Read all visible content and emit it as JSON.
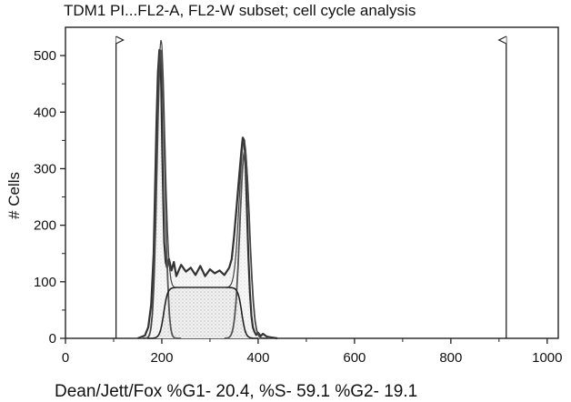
{
  "chart_data": {
    "type": "line",
    "title": "TDM1 PI...FL2-A, FL2-W subset; cell cycle analysis",
    "xlabel": "Dean/Jett/Fox %G1- 20.4, %S- 59.1 %G2- 19.1",
    "ylabel": "# Cells",
    "xlim": [
      0,
      1023
    ],
    "ylim": [
      0,
      550
    ],
    "x_ticks": [
      0,
      200,
      400,
      600,
      800,
      1000
    ],
    "y_ticks": [
      0,
      100,
      200,
      300,
      400,
      500
    ],
    "grid": false,
    "gate_markers": [
      105,
      915
    ],
    "histogram": {
      "x": [
        150,
        165,
        172,
        178,
        183,
        186,
        189,
        192,
        195,
        197,
        199,
        201,
        203,
        205,
        208,
        211,
        215,
        220,
        225,
        230,
        240,
        250,
        260,
        270,
        280,
        290,
        300,
        310,
        320,
        330,
        340,
        345,
        350,
        355,
        360,
        365,
        368,
        371,
        374,
        377,
        380,
        383,
        386,
        389,
        392,
        396,
        400,
        405,
        410,
        418,
        425,
        440
      ],
      "y": [
        0,
        5,
        20,
        60,
        150,
        260,
        380,
        470,
        510,
        505,
        440,
        330,
        240,
        170,
        135,
        125,
        140,
        120,
        135,
        110,
        130,
        118,
        125,
        112,
        128,
        110,
        122,
        115,
        120,
        112,
        125,
        140,
        180,
        230,
        280,
        330,
        355,
        350,
        300,
        220,
        140,
        80,
        40,
        20,
        12,
        6,
        10,
        4,
        8,
        3,
        2,
        0
      ]
    },
    "model": {
      "g1": {
        "mean": 198,
        "sd": 8,
        "height": 510
      },
      "g2": {
        "mean": 372,
        "sd": 10,
        "height": 330
      },
      "s_phase": {
        "start": 198,
        "end": 372,
        "level": 90
      }
    },
    "fit_percentages": {
      "G1": 20.4,
      "S": 59.1,
      "G2": 19.1
    }
  }
}
